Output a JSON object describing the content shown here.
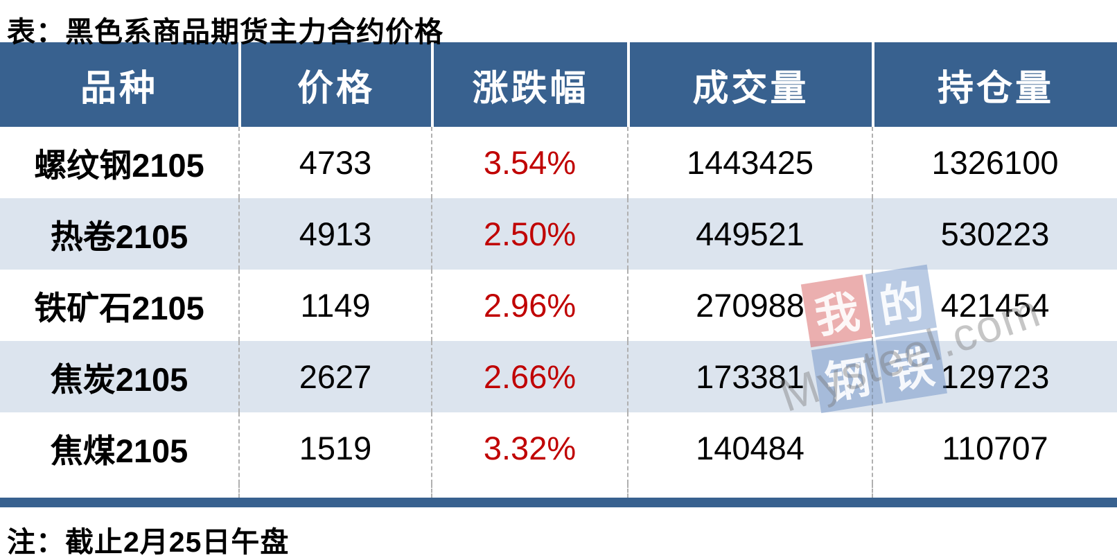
{
  "title": "表：黑色系商品期货主力合约价格",
  "note": "注：截止2月25日午盘",
  "table": {
    "headers": [
      "品种",
      "价格",
      "涨跌幅",
      "成交量",
      "持仓量"
    ],
    "rows": [
      {
        "name": "螺纹钢2105",
        "price": "4733",
        "change": "3.54%",
        "volume": "1443425",
        "open_interest": "1326100"
      },
      {
        "name": "热卷2105",
        "price": "4913",
        "change": "2.50%",
        "volume": "449521",
        "open_interest": "530223"
      },
      {
        "name": "铁矿石2105",
        "price": "1149",
        "change": "2.96%",
        "volume": "270988",
        "open_interest": "421454"
      },
      {
        "name": "焦炭2105",
        "price": "2627",
        "change": "2.66%",
        "volume": "173381",
        "open_interest": "129723"
      },
      {
        "name": "焦煤2105",
        "price": "1519",
        "change": "3.32%",
        "volume": "140484",
        "open_interest": "110707"
      }
    ]
  },
  "watermark": {
    "chars": [
      "我",
      "的",
      "钢",
      "铁"
    ],
    "domain": "Mysteel.com"
  },
  "colors": {
    "header_bg": "#38618f",
    "row_stripe": "#dce4ee",
    "change_red": "#c00000",
    "dashed_border": "#b0b0b0",
    "bottom_bar": "#38618f"
  }
}
